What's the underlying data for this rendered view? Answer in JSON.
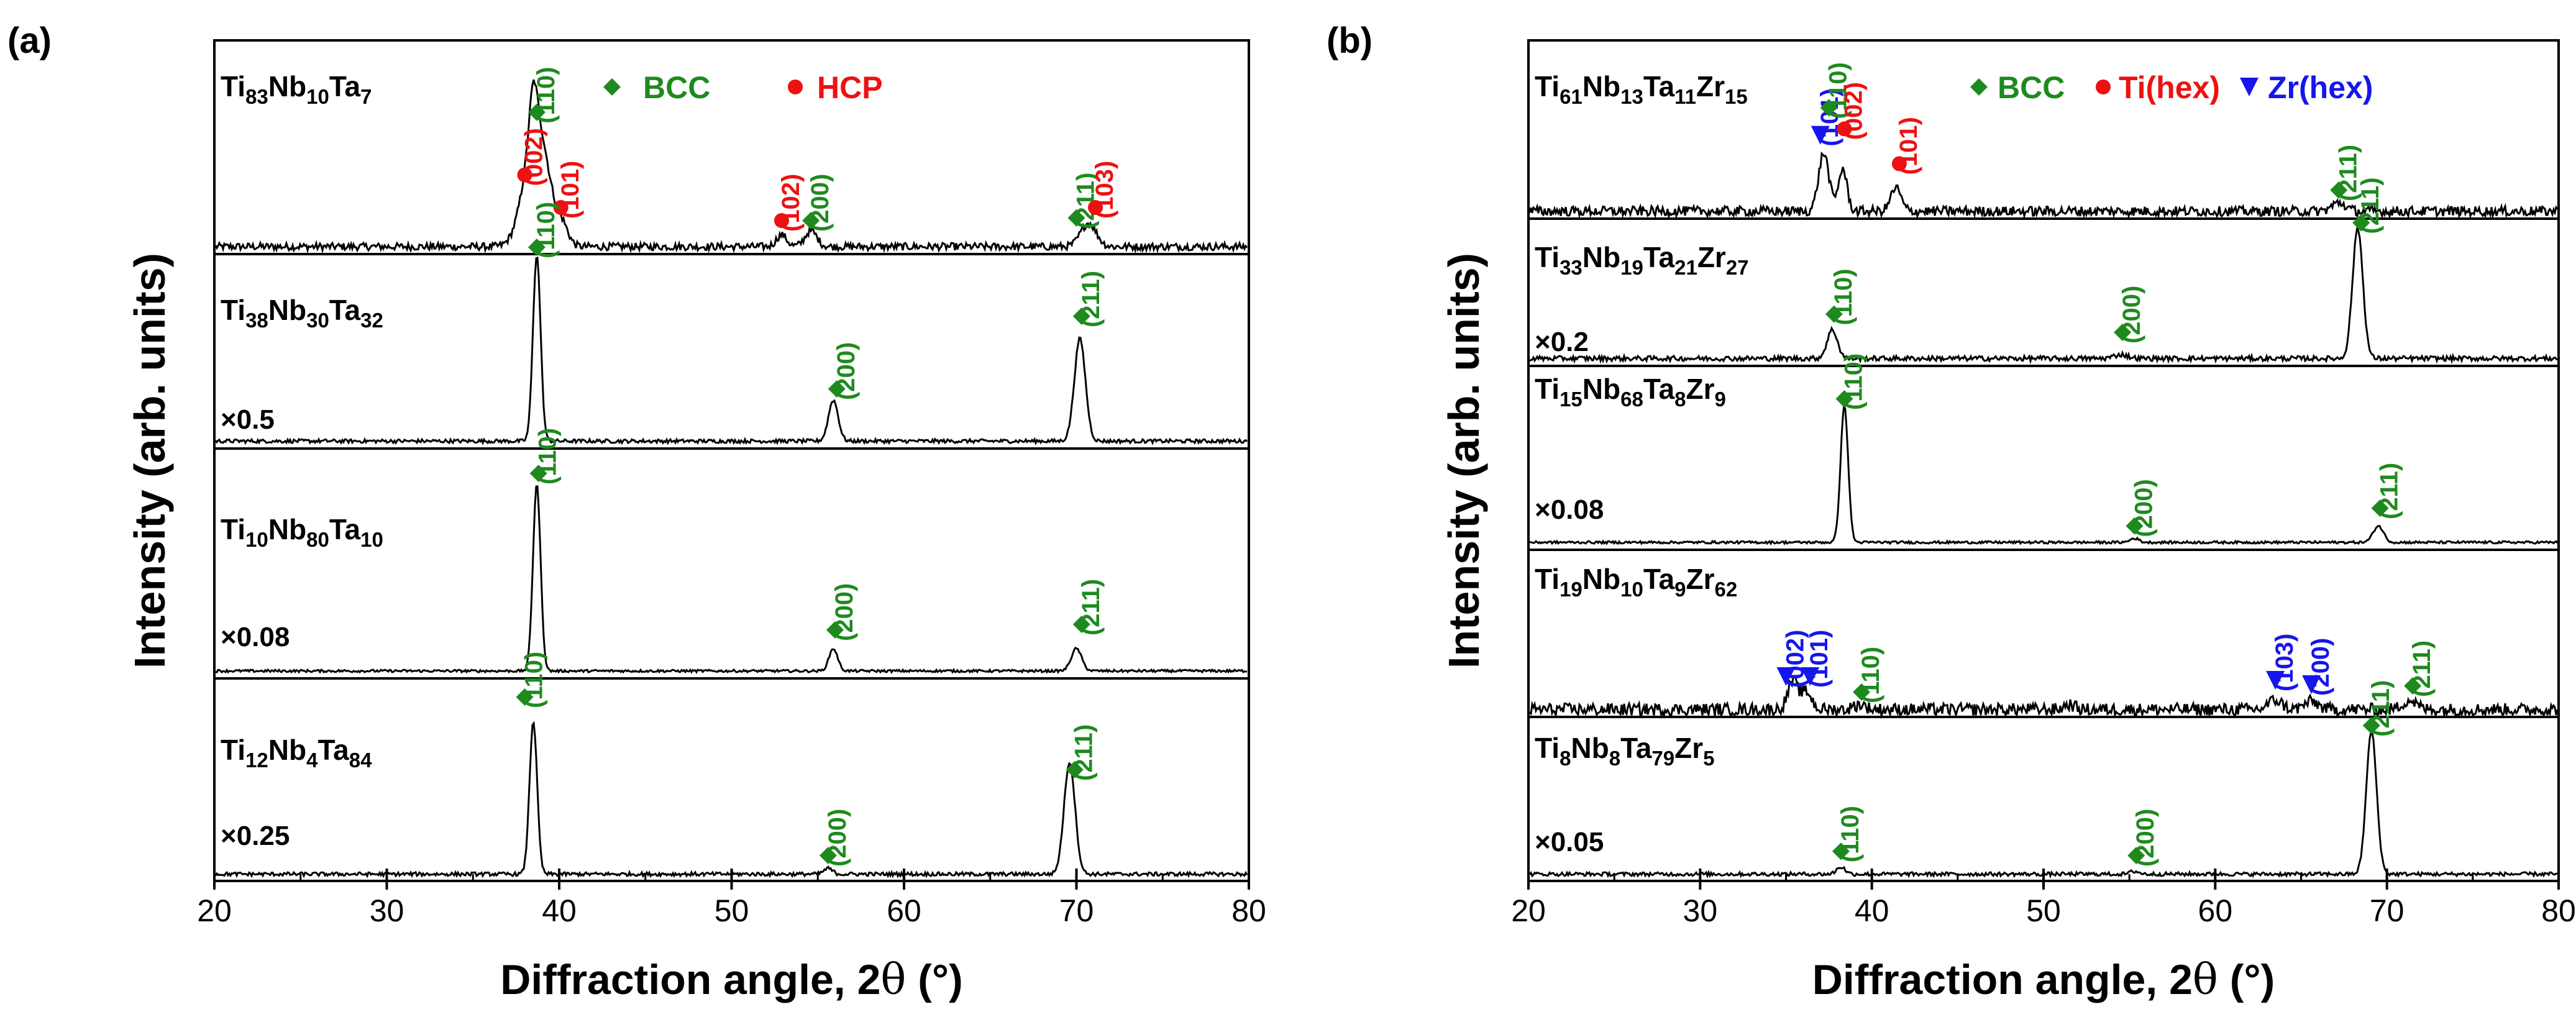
{
  "colors": {
    "bcc": "#1e8a1e",
    "hcp": "#ee1111",
    "zr": "#1515ee",
    "axis": "#000000"
  },
  "chart_data": [
    {
      "type": "line",
      "panel_label": "(a)",
      "xlabel_main": "Diffraction angle, 2",
      "xlabel_theta": "θ",
      "xlabel_unit": " (°)",
      "ylabel": "Intensity (arb. units)",
      "xlim": [
        20,
        80
      ],
      "x_ticks": [
        "20",
        "30",
        "40",
        "50",
        "60",
        "70",
        "80"
      ],
      "legend": [
        {
          "marker": "diamond",
          "color": "#1e8a1e",
          "label": "BCC"
        },
        {
          "marker": "circle",
          "color": "#ee1111",
          "label": "HCP"
        }
      ],
      "series": [
        {
          "name": "Ti83Nb10Ta7",
          "composition": [
            [
              "Ti",
              "83"
            ],
            [
              "Nb",
              "10"
            ],
            [
              "Ta",
              "7"
            ]
          ],
          "scale": "",
          "peaks": [
            [
              38.5,
              0.22,
              0.35
            ],
            [
              38.7,
              0.7,
              0.95
            ],
            [
              40.2,
              0.35,
              0.12
            ],
            [
              52.9,
              0.3,
              0.09
            ],
            [
              54.6,
              0.35,
              0.12
            ],
            [
              70.7,
              0.45,
              0.18
            ]
          ],
          "markers": [
            {
              "x": 38.7,
              "h": 1.03,
              "phase": "bcc",
              "hkl": "(110)"
            },
            {
              "x": 38.0,
              "h": 0.55,
              "phase": "hcp",
              "hkl": "(002)"
            },
            {
              "x": 40.1,
              "h": 0.3,
              "phase": "hcp",
              "hkl": "(101)"
            },
            {
              "x": 52.9,
              "h": 0.2,
              "phase": "hcp",
              "hkl": "(102)"
            },
            {
              "x": 54.6,
              "h": 0.2,
              "phase": "bcc",
              "hkl": "(200)"
            },
            {
              "x": 70.0,
              "h": 0.22,
              "phase": "bcc",
              "hkl": "(211)"
            },
            {
              "x": 71.1,
              "h": 0.3,
              "phase": "hcp",
              "hkl": "(103)"
            }
          ]
        },
        {
          "name": "Ti38Nb30Ta32",
          "composition": [
            [
              "Ti",
              "38"
            ],
            [
              "Nb",
              "30"
            ],
            [
              "Ta",
              "32"
            ]
          ],
          "scale": "×0.5",
          "peaks": [
            [
              38.7,
              0.22,
              1.0
            ],
            [
              55.9,
              0.28,
              0.22
            ],
            [
              70.2,
              0.32,
              0.55
            ]
          ],
          "markers": [
            {
              "x": 38.7,
              "h": 1.04,
              "phase": "bcc",
              "hkl": "(110)"
            },
            {
              "x": 56.1,
              "h": 0.28,
              "phase": "bcc",
              "hkl": "(200)"
            },
            {
              "x": 70.3,
              "h": 0.67,
              "phase": "bcc",
              "hkl": "(211)"
            }
          ]
        },
        {
          "name": "Ti10Nb80Ta10",
          "composition": [
            [
              "Ti",
              "10"
            ],
            [
              "Nb",
              "80"
            ],
            [
              "Ta",
              "10"
            ]
          ],
          "scale": "×0.08",
          "peaks": [
            [
              38.7,
              0.22,
              1.0
            ],
            [
              55.9,
              0.25,
              0.12
            ],
            [
              70.0,
              0.3,
              0.12
            ]
          ],
          "markers": [
            {
              "x": 38.8,
              "h": 1.06,
              "phase": "bcc",
              "hkl": "(110)"
            },
            {
              "x": 56.0,
              "h": 0.22,
              "phase": "bcc",
              "hkl": "(200)"
            },
            {
              "x": 70.3,
              "h": 0.25,
              "phase": "bcc",
              "hkl": "(211)"
            }
          ]
        },
        {
          "name": "Ti12Nb4Ta84",
          "composition": [
            [
              "Ti",
              "12"
            ],
            [
              "Nb",
              "4"
            ],
            [
              "Ta",
              "84"
            ]
          ],
          "scale": "×0.25",
          "peaks": [
            [
              38.5,
              0.22,
              0.82
            ],
            [
              55.6,
              0.25,
              0.03
            ],
            [
              69.6,
              0.32,
              0.6
            ]
          ],
          "markers": [
            {
              "x": 38.0,
              "h": 0.95,
              "phase": "bcc",
              "hkl": "(110)"
            },
            {
              "x": 55.6,
              "h": 0.1,
              "phase": "bcc",
              "hkl": "(200)"
            },
            {
              "x": 69.9,
              "h": 0.56,
              "phase": "bcc",
              "hkl": "(211)"
            }
          ]
        }
      ]
    },
    {
      "type": "line",
      "panel_label": "(b)",
      "xlabel_main": "Diffraction angle, 2",
      "xlabel_theta": "θ",
      "xlabel_unit": " (°)",
      "ylabel": "Intensity (arb. units)",
      "xlim": [
        20,
        80
      ],
      "x_ticks": [
        "20",
        "30",
        "40",
        "50",
        "60",
        "70",
        "80"
      ],
      "legend": [
        {
          "marker": "diamond",
          "color": "#1e8a1e",
          "label": "BCC"
        },
        {
          "marker": "circle",
          "color": "#ee1111",
          "label": "Ti(hex)"
        },
        {
          "marker": "triangle",
          "color": "#1515ee",
          "label": "Zr(hex)"
        }
      ],
      "series": [
        {
          "name": "Ti61Nb13Ta11Zr15",
          "composition": [
            [
              "Ti",
              "61"
            ],
            [
              "Nb",
              "13"
            ],
            [
              "Ta",
              "11"
            ],
            [
              "Zr",
              "15"
            ]
          ],
          "scale": "",
          "peaks": [
            [
              37.2,
              0.3,
              0.55
            ],
            [
              38.3,
              0.25,
              0.4
            ],
            [
              41.4,
              0.3,
              0.22
            ],
            [
              67.2,
              0.4,
              0.08
            ]
          ],
          "markers": [
            {
              "x": 37.0,
              "h": 0.72,
              "phase": "zr",
              "hkl": "(101)"
            },
            {
              "x": 37.5,
              "h": 0.98,
              "phase": "bcc",
              "hkl": "(110)"
            },
            {
              "x": 38.4,
              "h": 0.78,
              "phase": "hcp",
              "hkl": "(002)"
            },
            {
              "x": 41.6,
              "h": 0.45,
              "phase": "hcp",
              "hkl": "(101)"
            },
            {
              "x": 67.2,
              "h": 0.2,
              "phase": "bcc",
              "hkl": "(211)"
            }
          ]
        },
        {
          "name": "Ti33Nb19Ta21Zr27",
          "composition": [
            [
              "Ti",
              "33"
            ],
            [
              "Nb",
              "19"
            ],
            [
              "Ta",
              "21"
            ],
            [
              "Zr",
              "27"
            ]
          ],
          "scale": "×0.2",
          "peaks": [
            [
              37.7,
              0.3,
              0.22
            ],
            [
              54.5,
              0.4,
              0.03
            ],
            [
              68.3,
              0.3,
              1.0
            ]
          ],
          "markers": [
            {
              "x": 37.8,
              "h": 0.34,
              "phase": "bcc",
              "hkl": "(110)"
            },
            {
              "x": 54.6,
              "h": 0.2,
              "phase": "bcc",
              "hkl": "(200)"
            },
            {
              "x": 68.5,
              "h": 1.04,
              "phase": "bcc",
              "hkl": "(211)"
            }
          ]
        },
        {
          "name": "Ti15Nb68Ta8Zr9",
          "composition": [
            [
              "Ti",
              "15"
            ],
            [
              "Nb",
              "68"
            ],
            [
              "Ta",
              "8"
            ],
            [
              "Zr",
              "9"
            ]
          ],
          "scale": "×0.08",
          "peaks": [
            [
              38.4,
              0.22,
              1.0
            ],
            [
              55.3,
              0.25,
              0.03
            ],
            [
              69.5,
              0.3,
              0.12
            ]
          ],
          "markers": [
            {
              "x": 38.4,
              "h": 1.05,
              "phase": "bcc",
              "hkl": "(110)"
            },
            {
              "x": 55.3,
              "h": 0.12,
              "phase": "bcc",
              "hkl": "(200)"
            },
            {
              "x": 69.6,
              "h": 0.25,
              "phase": "bcc",
              "hkl": "(211)"
            }
          ]
        },
        {
          "name": "Ti19Nb10Ta9Zr62",
          "composition": [
            [
              "Ti",
              "19"
            ],
            [
              "Nb",
              "10"
            ],
            [
              "Ta",
              "9"
            ],
            [
              "Zr",
              "62"
            ]
          ],
          "scale": "",
          "peaks": [
            [
              35.4,
              0.3,
              0.45
            ],
            [
              36.2,
              0.3,
              0.28
            ],
            [
              39.3,
              0.35,
              0.08
            ],
            [
              51.5,
              0.3,
              0.08
            ],
            [
              63.5,
              0.4,
              0.15
            ],
            [
              65.6,
              0.4,
              0.13
            ],
            [
              71.3,
              0.4,
              0.15
            ]
          ],
          "markers": [
            {
              "x": 35.0,
              "h": 0.53,
              "phase": "zr",
              "hkl": "(002)"
            },
            {
              "x": 36.4,
              "h": 0.53,
              "phase": "zr",
              "hkl": "(101)"
            },
            {
              "x": 39.4,
              "h": 0.28,
              "phase": "bcc",
              "hkl": "(110)"
            },
            {
              "x": 63.5,
              "h": 0.47,
              "phase": "zr",
              "hkl": "(103)"
            },
            {
              "x": 65.6,
              "h": 0.4,
              "phase": "zr",
              "hkl": "(200)"
            },
            {
              "x": 71.5,
              "h": 0.38,
              "phase": "bcc",
              "hkl": "(211)"
            }
          ]
        },
        {
          "name": "Ti8Nb8Ta79Zr5",
          "composition": [
            [
              "Ti",
              "8"
            ],
            [
              "Nb",
              "8"
            ],
            [
              "Ta",
              "79"
            ],
            [
              "Zr",
              "5"
            ]
          ],
          "scale": "×0.05",
          "peaks": [
            [
              38.2,
              0.25,
              0.05
            ],
            [
              55.3,
              0.25,
              0.02
            ],
            [
              69.1,
              0.3,
              1.0
            ]
          ],
          "markers": [
            {
              "x": 38.2,
              "h": 0.16,
              "phase": "bcc",
              "hkl": "(110)"
            },
            {
              "x": 55.4,
              "h": 0.13,
              "phase": "bcc",
              "hkl": "(200)"
            },
            {
              "x": 69.1,
              "h": 1.04,
              "phase": "bcc",
              "hkl": "(211)"
            }
          ]
        }
      ]
    }
  ]
}
